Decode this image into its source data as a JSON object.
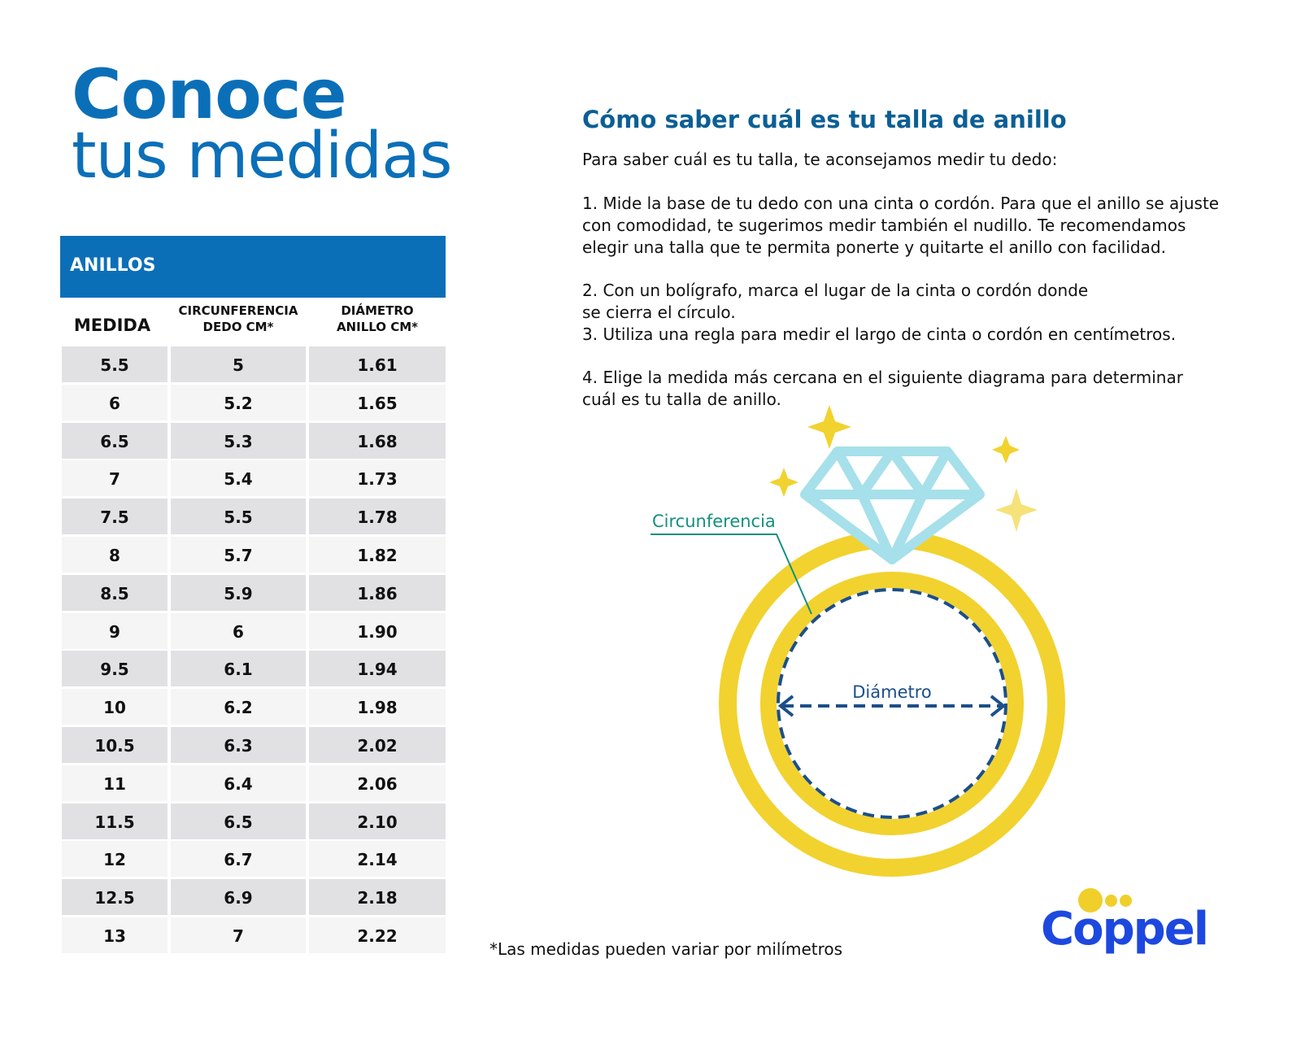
{
  "title": {
    "line1": "Conoce",
    "line2": "tus medidas"
  },
  "table": {
    "caption": "ANILLOS",
    "headers": [
      "MEDIDA",
      "CIRCUNFERENCIA DEDO CM*",
      "DIÁMETRO ANILLO CM*"
    ],
    "header_lines": {
      "c2a": "CIRCUNFERENCIA",
      "c2b": "DEDO CM*",
      "c3a": "DIÁMETRO",
      "c3b": "ANILLO CM*"
    },
    "rows": [
      [
        "5.5",
        "5",
        "1.61"
      ],
      [
        "6",
        "5.2",
        "1.65"
      ],
      [
        "6.5",
        "5.3",
        "1.68"
      ],
      [
        "7",
        "5.4",
        "1.73"
      ],
      [
        "7.5",
        "5.5",
        "1.78"
      ],
      [
        "8",
        "5.7",
        "1.82"
      ],
      [
        "8.5",
        "5.9",
        "1.86"
      ],
      [
        "9",
        "6",
        "1.90"
      ],
      [
        "9.5",
        "6.1",
        "1.94"
      ],
      [
        "10",
        "6.2",
        "1.98"
      ],
      [
        "10.5",
        "6.3",
        "2.02"
      ],
      [
        "11",
        "6.4",
        "2.06"
      ],
      [
        "11.5",
        "6.5",
        "2.10"
      ],
      [
        "12",
        "6.7",
        "2.14"
      ],
      [
        "12.5",
        "6.9",
        "2.18"
      ],
      [
        "13",
        "7",
        "2.22"
      ]
    ]
  },
  "instructions": {
    "heading": "Cómo saber cuál es tu talla de anillo",
    "intro": "Para saber cuál es tu talla, te aconsejamos medir tu dedo:",
    "step1": "1. Mide la base de tu dedo con una cinta o cordón. Para que el anillo se ajuste con comodidad, te sugerimos medir también el nudillo. Te recomendamos elegir una talla que te permita ponerte y quitarte el anillo con facilidad.",
    "step2": "2. Con un bolígrafo, marca el lugar de la cinta o cordón donde se cierra el círculo.",
    "step3": "3. Utiliza una regla para medir el largo de cinta o cordón en centímetros.",
    "step4": "4. Elige la medida más cercana en el siguiente diagrama para determinar cuál es tu talla de anillo."
  },
  "diagram": {
    "circumference_label": "Circunferencia",
    "diameter_label": "Diámetro",
    "colors": {
      "ring": "#f2d22e",
      "diamond": "#a6e0ea",
      "dashed": "#1b4f8a",
      "label": "#14907e"
    }
  },
  "footnote": "*Las medidas pueden variar por milímetros",
  "logo": {
    "text": "Coppel",
    "color": "#1d48e0",
    "dots_color": "#f0cf2a"
  },
  "colors": {
    "brand_blue": "#0b6fb8"
  }
}
